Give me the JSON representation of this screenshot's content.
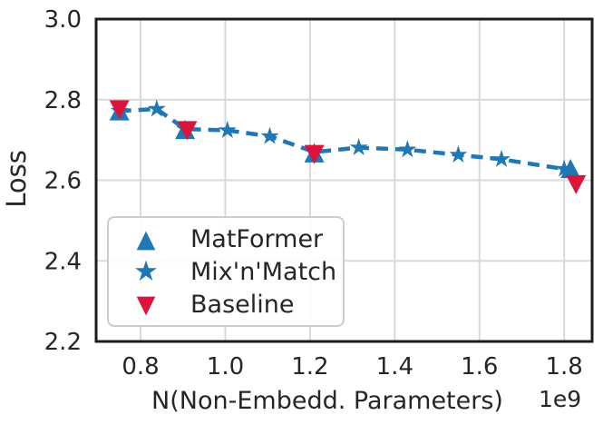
{
  "figure": {
    "background": "#ffffff",
    "text_color": "#262626",
    "grid_color": "#d9d9d9",
    "spine_color": "#1c1c1c",
    "accent_blue": "#1f77b4",
    "accent_red": "#dc143c"
  },
  "chart_data": {
    "type": "scatter",
    "title": "",
    "xlabel": "N(Non-Embedd. Parameters)",
    "ylabel": "Loss",
    "x_offset_label": "1e9",
    "xlim": [
      0.695,
      1.866
    ],
    "ylim": [
      2.2,
      3.0
    ],
    "xticks": [
      0.8,
      1.0,
      1.2,
      1.4,
      1.6,
      1.8
    ],
    "xtick_labels": [
      "0.8",
      "1.0",
      "1.2",
      "1.4",
      "1.6",
      "1.8"
    ],
    "yticks": [
      3.0,
      2.8,
      2.6,
      2.4,
      2.2
    ],
    "ytick_labels": [
      "3.0",
      "2.8",
      "2.6",
      "2.4",
      "2.2"
    ],
    "grid": true,
    "legend_position": "lower left",
    "series": [
      {
        "name": "MatFormer",
        "marker": "triangle-up",
        "color": "#1f77b4",
        "line": "none",
        "z": 2,
        "points": [
          [
            0.75,
            2.772
          ],
          [
            0.905,
            2.726
          ],
          [
            1.21,
            2.668
          ],
          [
            1.815,
            2.629
          ]
        ]
      },
      {
        "name": "Mix'n'Match",
        "marker": "star",
        "color": "#1f77b4",
        "line": "dashed",
        "z": 1,
        "points": [
          [
            0.75,
            2.772
          ],
          [
            0.838,
            2.777
          ],
          [
            0.905,
            2.727
          ],
          [
            1.005,
            2.724
          ],
          [
            1.105,
            2.709
          ],
          [
            1.21,
            2.67
          ],
          [
            1.315,
            2.681
          ],
          [
            1.43,
            2.676
          ],
          [
            1.55,
            2.663
          ],
          [
            1.652,
            2.652
          ],
          [
            1.8,
            2.628
          ]
        ]
      },
      {
        "name": "Baseline",
        "marker": "triangle-down",
        "color": "#dc143c",
        "line": "none",
        "z": 3,
        "points": [
          [
            0.75,
            2.775
          ],
          [
            0.91,
            2.723
          ],
          [
            1.21,
            2.664
          ],
          [
            1.828,
            2.589
          ]
        ]
      }
    ]
  },
  "legend": {
    "items": [
      {
        "label": "MatFormer",
        "marker": "triangle-up",
        "color": "#1f77b4"
      },
      {
        "label": "Mix'n'Match",
        "marker": "star",
        "color": "#1f77b4"
      },
      {
        "label": "Baseline",
        "marker": "triangle-down",
        "color": "#dc143c"
      }
    ]
  }
}
